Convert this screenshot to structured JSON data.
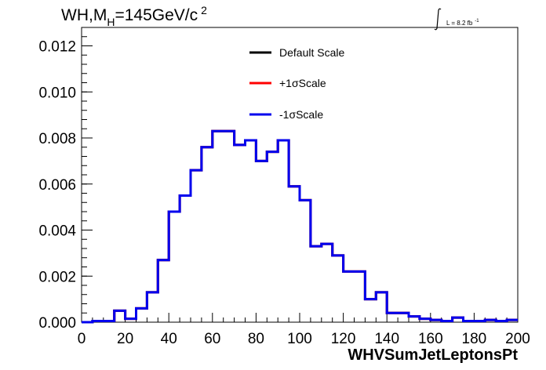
{
  "chart_data": {
    "type": "histogram",
    "title": "WH,M_H=145GeV/c^2",
    "title_parts": {
      "main": "WH,M",
      "sub": "H",
      "mid": "=145GeV/c",
      "sup": "2"
    },
    "lumi_label": {
      "prefix": "L = 8.2 fb",
      "sup": "-1"
    },
    "xlabel": "WHVSumJetLeptonsPt",
    "ylabel": "",
    "xlim": [
      0,
      200
    ],
    "ylim": [
      0,
      0.0128
    ],
    "xticks": [
      "0",
      "20",
      "40",
      "60",
      "80",
      "100",
      "120",
      "140",
      "160",
      "180",
      "200"
    ],
    "yticks": [
      "0.000",
      "0.002",
      "0.004",
      "0.006",
      "0.008",
      "0.010",
      "0.012"
    ],
    "bin_edges": [
      0,
      5,
      10,
      15,
      20,
      25,
      30,
      35,
      40,
      45,
      50,
      55,
      60,
      65,
      70,
      75,
      80,
      85,
      90,
      95,
      100,
      105,
      110,
      115,
      120,
      125,
      130,
      135,
      140,
      145,
      150,
      155,
      160,
      165,
      170,
      175,
      180,
      185,
      190,
      195,
      200
    ],
    "series": [
      {
        "name": "Default Scale",
        "color": "#000000",
        "values": [
          0.0,
          5e-05,
          5e-05,
          0.0005,
          0.00015,
          0.0006,
          0.0013,
          0.0027,
          0.0048,
          0.0055,
          0.0066,
          0.0076,
          0.0083,
          0.0083,
          0.0077,
          0.0079,
          0.007,
          0.0074,
          0.0079,
          0.0059,
          0.0053,
          0.0033,
          0.0034,
          0.0029,
          0.0022,
          0.0022,
          0.001,
          0.0013,
          0.0004,
          0.0004,
          0.00025,
          0.00015,
          0.0001,
          5e-05,
          0.0002,
          5e-05,
          5e-05,
          0.0001,
          5e-05,
          0.0001
        ]
      },
      {
        "name": "+1σScale",
        "color": "#ff0000",
        "values": [
          0.0,
          5e-05,
          5e-05,
          0.0005,
          0.00015,
          0.0006,
          0.0013,
          0.0027,
          0.0048,
          0.0055,
          0.0066,
          0.0076,
          0.0083,
          0.0083,
          0.0077,
          0.0079,
          0.007,
          0.0074,
          0.0079,
          0.0059,
          0.0053,
          0.0033,
          0.0034,
          0.0029,
          0.0022,
          0.0022,
          0.001,
          0.0013,
          0.0004,
          0.0004,
          0.00025,
          0.00015,
          0.0001,
          5e-05,
          0.0002,
          5e-05,
          5e-05,
          0.0001,
          5e-05,
          0.0001
        ]
      },
      {
        "name": "-1σScale",
        "color": "#0000ee",
        "values": [
          0.0,
          5e-05,
          5e-05,
          0.0005,
          0.00015,
          0.0006,
          0.0013,
          0.0027,
          0.0048,
          0.0055,
          0.0066,
          0.0076,
          0.0083,
          0.0083,
          0.0077,
          0.0079,
          0.007,
          0.0074,
          0.0079,
          0.0059,
          0.0053,
          0.0033,
          0.0034,
          0.0029,
          0.0022,
          0.0022,
          0.001,
          0.0013,
          0.0004,
          0.0004,
          0.00025,
          0.00015,
          0.0001,
          5e-05,
          0.0002,
          5e-05,
          5e-05,
          0.0001,
          5e-05,
          0.0001
        ]
      }
    ],
    "legend_position": "top-right",
    "grid": false
  }
}
